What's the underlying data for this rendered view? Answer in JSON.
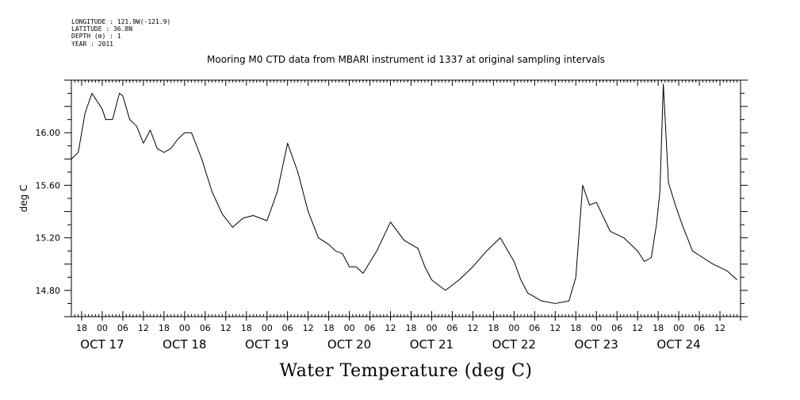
{
  "metadata": {
    "longitude": "LONGITUDE : 121.9W(-121.9)",
    "latitude": "LATITUDE : 36.8N",
    "depth": "DEPTH (m) : 1",
    "year": "YEAR : 2011"
  },
  "chart_data": {
    "type": "line",
    "title": "Mooring M0 CTD data from MBARI instrument id 1337 at original sampling intervals",
    "xlabel": "Water Temperature (deg C)",
    "ylabel": "deg C",
    "ylim": [
      14.6,
      16.4
    ],
    "xlim": [
      "2011-10-16T15:00",
      "2011-10-24T18:00"
    ],
    "y_ticks": [
      "16.00",
      "15.60",
      "15.20",
      "14.80"
    ],
    "x_hour_ticks": [
      "18",
      "00",
      "06",
      "12",
      "18",
      "00",
      "06",
      "12",
      "18",
      "00",
      "06",
      "12",
      "18",
      "00",
      "06",
      "12",
      "18",
      "00",
      "06",
      "12",
      "18",
      "00",
      "06",
      "12",
      "18",
      "00",
      "06",
      "12",
      "18",
      "00",
      "06",
      "12"
    ],
    "x_day_labels": [
      "OCT 17",
      "OCT 18",
      "OCT 19",
      "OCT 20",
      "OCT 21",
      "OCT 22",
      "OCT 23",
      "OCT 24"
    ],
    "grid": false,
    "series": [
      {
        "color": "#000000",
        "x": [
          "2011-10-16T15:00",
          "2011-10-16T17:00",
          "2011-10-16T19:00",
          "2011-10-16T21:00",
          "2011-10-16T23:00",
          "2011-10-17T00:00",
          "2011-10-17T01:00",
          "2011-10-17T03:00",
          "2011-10-17T05:00",
          "2011-10-17T06:00",
          "2011-10-17T08:00",
          "2011-10-17T10:00",
          "2011-10-17T12:00",
          "2011-10-17T14:00",
          "2011-10-17T16:00",
          "2011-10-17T18:00",
          "2011-10-17T20:00",
          "2011-10-17T22:00",
          "2011-10-18T00:00",
          "2011-10-18T02:00",
          "2011-10-18T05:00",
          "2011-10-18T08:00",
          "2011-10-18T11:00",
          "2011-10-18T14:00",
          "2011-10-18T17:00",
          "2011-10-18T20:00",
          "2011-10-19T00:00",
          "2011-10-19T03:00",
          "2011-10-19T06:00",
          "2011-10-19T09:00",
          "2011-10-19T12:00",
          "2011-10-19T15:00",
          "2011-10-19T18:00",
          "2011-10-19T20:00",
          "2011-10-19T22:00",
          "2011-10-20T00:00",
          "2011-10-20T02:00",
          "2011-10-20T04:00",
          "2011-10-20T08:00",
          "2011-10-20T12:00",
          "2011-10-20T16:00",
          "2011-10-20T20:00",
          "2011-10-20T22:00",
          "2011-10-21T00:00",
          "2011-10-21T04:00",
          "2011-10-21T08:00",
          "2011-10-21T12:00",
          "2011-10-21T16:00",
          "2011-10-21T20:00",
          "2011-10-22T00:00",
          "2011-10-22T02:00",
          "2011-10-22T04:00",
          "2011-10-22T08:00",
          "2011-10-22T12:00",
          "2011-10-22T16:00",
          "2011-10-22T18:00",
          "2011-10-22T20:00",
          "2011-10-22T22:00",
          "2011-10-23T00:00",
          "2011-10-23T04:00",
          "2011-10-23T08:00",
          "2011-10-23T12:00",
          "2011-10-23T14:00",
          "2011-10-23T16:00",
          "2011-10-23T17:30",
          "2011-10-23T18:30",
          "2011-10-23T19:30",
          "2011-10-23T21:00",
          "2011-10-23T23:00",
          "2011-10-24T01:00",
          "2011-10-24T04:00",
          "2011-10-24T07:00",
          "2011-10-24T10:00",
          "2011-10-24T14:00",
          "2011-10-24T17:00"
        ],
        "y": [
          15.8,
          15.85,
          16.15,
          16.3,
          16.22,
          16.18,
          16.1,
          16.1,
          16.3,
          16.28,
          16.1,
          16.05,
          15.92,
          16.02,
          15.88,
          15.85,
          15.88,
          15.95,
          16.0,
          16.0,
          15.8,
          15.55,
          15.38,
          15.28,
          15.35,
          15.37,
          15.33,
          15.55,
          15.92,
          15.7,
          15.4,
          15.2,
          15.15,
          15.1,
          15.08,
          14.98,
          14.98,
          14.93,
          15.1,
          15.32,
          15.18,
          15.12,
          14.98,
          14.88,
          14.8,
          14.88,
          14.98,
          15.1,
          15.2,
          15.02,
          14.88,
          14.78,
          14.72,
          14.7,
          14.72,
          14.9,
          15.6,
          15.45,
          15.47,
          15.25,
          15.2,
          15.1,
          15.02,
          15.05,
          15.3,
          15.55,
          16.37,
          15.62,
          15.45,
          15.3,
          15.1,
          15.05,
          15.0,
          14.95,
          14.88
        ]
      }
    ]
  }
}
